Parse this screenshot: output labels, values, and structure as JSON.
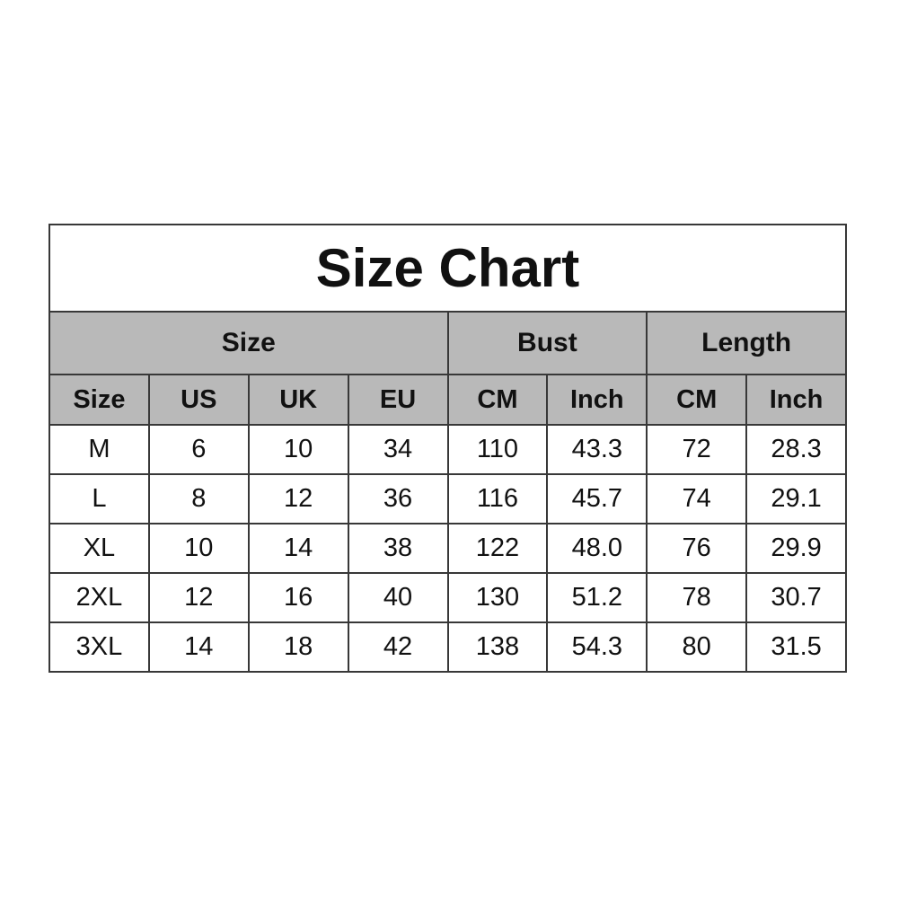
{
  "chart_data": {
    "type": "table",
    "title": "Size Chart",
    "group_headers": [
      {
        "label": "Size",
        "span": 4
      },
      {
        "label": "Bust",
        "span": 2
      },
      {
        "label": "Length",
        "span": 2
      }
    ],
    "columns": [
      "Size",
      "US",
      "UK",
      "EU",
      "CM",
      "Inch",
      "CM",
      "Inch"
    ],
    "rows": [
      [
        "M",
        "6",
        "10",
        "34",
        "110",
        "43.3",
        "72",
        "28.3"
      ],
      [
        "L",
        "8",
        "12",
        "36",
        "116",
        "45.7",
        "74",
        "29.1"
      ],
      [
        "XL",
        "10",
        "14",
        "38",
        "122",
        "48.0",
        "76",
        "29.9"
      ],
      [
        "2XL",
        "12",
        "16",
        "40",
        "130",
        "51.2",
        "78",
        "30.7"
      ],
      [
        "3XL",
        "14",
        "18",
        "42",
        "138",
        "54.3",
        "80",
        "31.5"
      ]
    ],
    "colors": {
      "header_bg": "#b9b9b9",
      "border": "#383838",
      "text": "#111111",
      "page_bg": "#ffffff"
    }
  }
}
